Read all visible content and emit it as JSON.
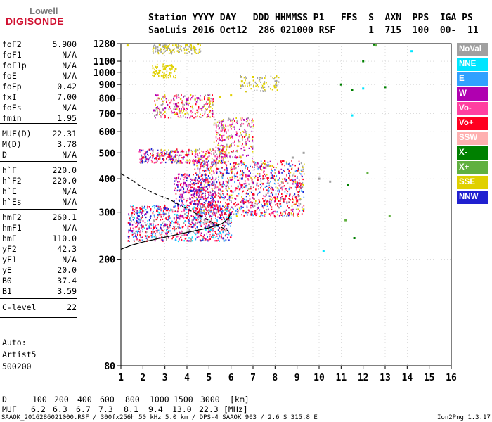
{
  "logo": {
    "line1": "Lowell",
    "line2": "DIGISONDE"
  },
  "header": {
    "line1": "Station YYYY DAY   DDD HHMMSS P1   FFS  S  AXN  PPS  IGA PS",
    "line2": "SaoLuis 2016 Oct12  286 021000 RSF      1  715  100  00-  11"
  },
  "params": [
    {
      "label": "foF2",
      "value": "5.900"
    },
    {
      "label": "foF1",
      "value": "N/A"
    },
    {
      "label": "foF1p",
      "value": "N/A"
    },
    {
      "label": "foE",
      "value": "N/A"
    },
    {
      "label": "foEp",
      "value": "0.42"
    },
    {
      "label": "fxI",
      "value": "7.00"
    },
    {
      "label": "foEs",
      "value": "N/A"
    },
    {
      "label": "fmin",
      "value": "1.95"
    },
    {
      "label": "MUF(D)",
      "value": "22.31"
    },
    {
      "label": "M(D)",
      "value": "3.78"
    },
    {
      "label": "D",
      "value": "N/A"
    },
    {
      "label": "h`F",
      "value": "220.0"
    },
    {
      "label": "h`F2",
      "value": "220.0"
    },
    {
      "label": "h`E",
      "value": "N/A"
    },
    {
      "label": "h`Es",
      "value": "N/A"
    },
    {
      "label": "hmF2",
      "value": "260.1"
    },
    {
      "label": "hmF1",
      "value": "N/A"
    },
    {
      "label": "hmE",
      "value": "110.0"
    },
    {
      "label": "yF2",
      "value": "42.3"
    },
    {
      "label": "yF1",
      "value": "N/A"
    },
    {
      "label": "yE",
      "value": "20.0"
    },
    {
      "label": "B0",
      "value": "37.4"
    },
    {
      "label": "B1",
      "value": "3.59"
    },
    {
      "label": "C-level",
      "value": "22"
    }
  ],
  "auto": {
    "line1": "Auto:",
    "line2": "Artist5",
    "line3": "500200"
  },
  "legend": [
    {
      "label": "NoVal",
      "color": "#a0a0a0"
    },
    {
      "label": "NNE",
      "color": "#00e5ff"
    },
    {
      "label": "E",
      "color": "#30a0ff"
    },
    {
      "label": "W",
      "color": "#b000b0"
    },
    {
      "label": "Vo-",
      "color": "#ff40a0"
    },
    {
      "label": "Vo+",
      "color": "#ff0020"
    },
    {
      "label": "SSW",
      "color": "#ffb0b0"
    },
    {
      "label": "X-",
      "color": "#008000"
    },
    {
      "label": "X+",
      "color": "#60b040"
    },
    {
      "label": "SSE",
      "color": "#e0d000"
    },
    {
      "label": "NNW",
      "color": "#2020d0"
    }
  ],
  "muf_table": {
    "d_label": "D",
    "muf_label": "MUF",
    "d_values": [
      "100",
      "200",
      "400",
      "600",
      "800",
      "1000",
      "1500",
      "3000"
    ],
    "d_unit": "[km]",
    "muf_values": [
      "6.2",
      "6.3",
      "6.7",
      "7.3",
      "8.1",
      "9.4",
      "13.0",
      "22.3"
    ],
    "muf_unit": "[MHz]"
  },
  "footer": {
    "left": "SAAOK_2016286021000.RSF / 300fx256h 50 kHz 5.0 km / DPS-4 SAAOK 903 / 2.6 S 315.8 E",
    "right": "Ion2Png 1.3.17"
  },
  "chart_data": {
    "type": "scatter",
    "title": "",
    "xlabel": "",
    "ylabel": "",
    "xlim": [
      1,
      16
    ],
    "ylim": [
      80,
      1280
    ],
    "x_ticks": [
      "1",
      "2",
      "3",
      "4",
      "5",
      "6",
      "7",
      "8",
      "9",
      "10",
      "11",
      "12",
      "13",
      "14",
      "15",
      "16"
    ],
    "y_ticks": [
      "80",
      "200",
      "300",
      "400",
      "500",
      "600",
      "700",
      "800",
      "900",
      "1000",
      "1100",
      "1280"
    ],
    "y_scale": "log",
    "grid": "dotted",
    "series": [
      {
        "name": "Vo+",
        "color": "#ff0020",
        "points": [
          [
            2.0,
            265
          ],
          [
            2.5,
            262
          ],
          [
            3.0,
            268
          ],
          [
            3.5,
            275
          ],
          [
            4.0,
            285
          ],
          [
            4.5,
            300
          ],
          [
            5.0,
            320
          ],
          [
            5.5,
            340
          ],
          [
            6.0,
            360
          ],
          [
            6.5,
            380
          ],
          [
            7.0,
            350
          ],
          [
            7.5,
            330
          ],
          [
            8.0,
            340
          ],
          [
            8.5,
            345
          ],
          [
            9.0,
            330
          ],
          [
            2.0,
            480
          ],
          [
            2.6,
            478
          ],
          [
            3.2,
            485
          ],
          [
            4.0,
            490
          ],
          [
            5.0,
            500
          ],
          [
            5.6,
            510
          ]
        ]
      },
      {
        "name": "W",
        "color": "#b000b0",
        "points": [
          [
            1.5,
            255
          ],
          [
            2.2,
            260
          ],
          [
            3.0,
            270
          ],
          [
            3.8,
            290
          ],
          [
            4.5,
            320
          ],
          [
            5.2,
            350
          ],
          [
            6.0,
            395
          ],
          [
            6.8,
            410
          ],
          [
            7.5,
            440
          ],
          [
            8.2,
            420
          ],
          [
            9.0,
            380
          ],
          [
            2.5,
            720
          ],
          [
            3.0,
            735
          ],
          [
            3.5,
            760
          ],
          [
            4.0,
            790
          ],
          [
            4.5,
            800
          ]
        ]
      },
      {
        "name": "NNW",
        "color": "#2020d0",
        "points": [
          [
            1.4,
            270
          ],
          [
            1.8,
            290
          ],
          [
            2.2,
            300
          ],
          [
            3.0,
            310
          ],
          [
            3.6,
            320
          ],
          [
            4.2,
            360
          ],
          [
            5.0,
            380
          ],
          [
            5.8,
            420
          ],
          [
            6.5,
            400
          ]
        ]
      },
      {
        "name": "SSE",
        "color": "#e0d000",
        "points": [
          [
            3.0,
            1250
          ],
          [
            3.5,
            1260
          ],
          [
            4.0,
            1270
          ],
          [
            4.5,
            1275
          ],
          [
            2.5,
            1000
          ],
          [
            3.0,
            1030
          ],
          [
            3.3,
            1060
          ],
          [
            6.5,
            925
          ],
          [
            7.0,
            960
          ],
          [
            7.5,
            905
          ],
          [
            8.0,
            880
          ],
          [
            5.0,
            800
          ],
          [
            5.5,
            810
          ],
          [
            6.0,
            820
          ],
          [
            1.3,
            1260
          ]
        ]
      },
      {
        "name": "X-",
        "color": "#008000",
        "points": [
          [
            11.0,
            900
          ],
          [
            11.5,
            860
          ],
          [
            12.0,
            1100
          ],
          [
            12.5,
            1270
          ],
          [
            13.0,
            880
          ],
          [
            11.3,
            380
          ],
          [
            11.6,
            240
          ]
        ]
      },
      {
        "name": "NNE",
        "color": "#00e5ff",
        "points": [
          [
            14.2,
            1200
          ],
          [
            12.0,
            870
          ],
          [
            10.2,
            215
          ],
          [
            11.5,
            690
          ]
        ]
      },
      {
        "name": "X+",
        "color": "#60b040",
        "points": [
          [
            12.6,
            1260
          ],
          [
            11.2,
            280
          ],
          [
            12.2,
            420
          ],
          [
            13.2,
            290
          ]
        ]
      },
      {
        "name": "NoVal",
        "color": "#a0a0a0",
        "points": [
          [
            10.0,
            400
          ],
          [
            10.5,
            390
          ],
          [
            8.8,
            480
          ],
          [
            9.3,
            500
          ]
        ]
      }
    ],
    "virtual_trace": {
      "name": "O trace",
      "x": [
        1.0,
        1.5,
        2.0,
        3.0,
        4.0,
        5.0,
        5.6,
        5.9,
        6.0
      ],
      "y": [
        218,
        226,
        232,
        242,
        252,
        262,
        272,
        285,
        300
      ]
    },
    "profile": {
      "name": "profile",
      "x": [
        1.0,
        1.5,
        2.0,
        2.6,
        3.2,
        3.8,
        4.3,
        4.8,
        5.3,
        5.9
      ],
      "y": [
        418,
        395,
        370,
        350,
        335,
        315,
        300,
        285,
        270,
        255
      ]
    }
  }
}
